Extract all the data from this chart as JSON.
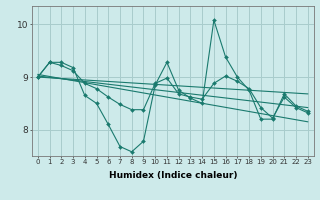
{
  "xlabel": "Humidex (Indice chaleur)",
  "xlim": [
    -0.5,
    23.5
  ],
  "ylim": [
    7.5,
    10.35
  ],
  "xticks": [
    0,
    1,
    2,
    3,
    4,
    5,
    6,
    7,
    8,
    9,
    10,
    11,
    12,
    13,
    14,
    15,
    16,
    17,
    18,
    19,
    20,
    21,
    22,
    23
  ],
  "yticks": [
    8,
    9,
    10
  ],
  "background_color": "#cdeaea",
  "grid_color": "#a8cccc",
  "line_color": "#1a7a6e",
  "lines": [
    {
      "x": [
        0,
        1,
        2,
        3,
        4,
        5,
        6,
        7,
        8,
        9,
        10,
        11,
        12,
        13,
        14,
        15,
        16,
        17,
        18,
        19,
        20,
        21,
        22,
        23
      ],
      "y": [
        9.0,
        9.28,
        9.28,
        9.18,
        8.65,
        8.5,
        8.1,
        7.68,
        7.58,
        7.78,
        8.85,
        9.28,
        8.75,
        8.6,
        8.5,
        10.08,
        9.38,
        9.0,
        8.75,
        8.2,
        8.2,
        8.68,
        8.45,
        8.35
      ],
      "marker": true
    },
    {
      "x": [
        0,
        1,
        2,
        3,
        4,
        5,
        6,
        7,
        8,
        9,
        10,
        11,
        12,
        13,
        14,
        15,
        16,
        17,
        18,
        19,
        20,
        21,
        22,
        23
      ],
      "y": [
        9.0,
        9.28,
        9.22,
        9.12,
        8.88,
        8.78,
        8.62,
        8.48,
        8.38,
        8.38,
        8.88,
        8.98,
        8.68,
        8.62,
        8.58,
        8.88,
        9.02,
        8.92,
        8.78,
        8.42,
        8.22,
        8.62,
        8.42,
        8.32
      ],
      "marker": true
    },
    {
      "x": [
        0,
        23
      ],
      "y": [
        9.05,
        8.15
      ],
      "marker": false
    },
    {
      "x": [
        0,
        23
      ],
      "y": [
        9.02,
        8.42
      ],
      "marker": false
    },
    {
      "x": [
        0,
        23
      ],
      "y": [
        9.0,
        8.68
      ],
      "marker": false
    }
  ]
}
